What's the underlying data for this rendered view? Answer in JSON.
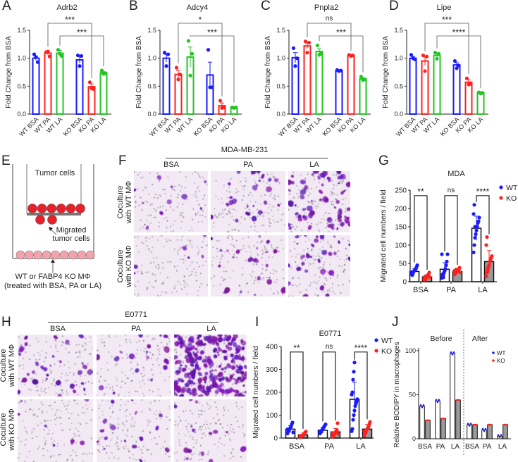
{
  "panel_labels": {
    "A": "A",
    "B": "B",
    "C": "C",
    "D": "D",
    "E": "E",
    "F": "F",
    "G": "G",
    "H": "H",
    "I": "I",
    "J": "J"
  },
  "colors": {
    "wt_blue": "#1a1aff",
    "ko_red": "#ff2020",
    "la_green": "#22c422",
    "ko_bar_gray": "#9a9a9a",
    "mda_purple": "#6a1fa8"
  },
  "diagram_e": {
    "tumor_cells": "Tumor cells",
    "migrated_line1": "Migrated",
    "migrated_line2": "tumor cells",
    "macrophage_line1": "WT or FABP4 KO MΦ",
    "macrophage_line2": "(treated with BSA, PA or LA)"
  },
  "photos_f": {
    "cell_line": "MDA-MB-231",
    "columns": [
      "BSA",
      "PA",
      "LA"
    ],
    "rows": [
      {
        "line1": "Coculture",
        "line2": "with WT MΦ"
      },
      {
        "line1": "Coculture",
        "line2": "with KO MΦ"
      }
    ]
  },
  "photos_h": {
    "cell_line": "E0771",
    "columns": [
      "BSA",
      "PA",
      "LA"
    ],
    "rows": [
      {
        "line1": "Coculture",
        "line2": "with WT MΦ"
      },
      {
        "line1": "Coculture",
        "line2": "with KO MΦ"
      }
    ]
  },
  "chart_data": [
    {
      "id": "A",
      "type": "bar",
      "title": "Adrb2",
      "ylabel": "Fold Change from BSA",
      "ylim": [
        0,
        1.5
      ],
      "yticks": [
        "0.0",
        "0.5",
        "1.0",
        "1.5"
      ],
      "categories": [
        "WT BSA",
        "WT PA",
        "WT LA",
        "KO BSA",
        "KO PA",
        "KO LA"
      ],
      "values": [
        1.0,
        1.09,
        1.09,
        0.97,
        0.49,
        0.74
      ],
      "errors": [
        0.04,
        0.04,
        0.05,
        0.06,
        0.05,
        0.02
      ],
      "points": [
        [
          1.07,
          0.93,
          1.02
        ],
        [
          1.11,
          1.03,
          1.12
        ],
        [
          1.15,
          1.04,
          1.08
        ],
        [
          1.05,
          1.04,
          0.86
        ],
        [
          0.57,
          0.45,
          0.46
        ],
        [
          0.78,
          0.73,
          0.72
        ]
      ],
      "significance": [
        {
          "from": 1,
          "to": 4,
          "label": "***"
        },
        {
          "from": 2,
          "to": 5,
          "label": "***"
        }
      ]
    },
    {
      "id": "B",
      "type": "bar",
      "title": "Adcy4",
      "ylabel": "Fold Change from BSA",
      "ylim": [
        0,
        1.5
      ],
      "yticks": [
        "0.0",
        "0.5",
        "1.0",
        "1.5"
      ],
      "categories": [
        "WT BSA",
        "WT PA",
        "WT LA",
        "KO BSA",
        "KO PA",
        "KO LA"
      ],
      "values": [
        1.0,
        0.71,
        1.02,
        0.7,
        0.15,
        0.12
      ],
      "errors": [
        0.07,
        0.07,
        0.18,
        0.23,
        0.05,
        0.01
      ],
      "points": [
        [
          1.1,
          1.07,
          0.86
        ],
        [
          0.83,
          0.71,
          0.62
        ],
        [
          1.31,
          1.08,
          0.69
        ],
        [
          1.15,
          0.48,
          0.48
        ],
        [
          0.24,
          0.12,
          0.11
        ],
        [
          0.12,
          0.12,
          0.11
        ]
      ],
      "significance": [
        {
          "from": 1,
          "to": 4,
          "label": "*"
        },
        {
          "from": 2,
          "to": 5,
          "label": "***"
        }
      ]
    },
    {
      "id": "C",
      "type": "bar",
      "title": "Pnpla2",
      "ylabel": "Fold Change from BSA",
      "ylim": [
        0,
        1.5
      ],
      "yticks": [
        "0.0",
        "0.5",
        "1.0",
        "1.5"
      ],
      "categories": [
        "WT BSA",
        "WT PA",
        "WT LA",
        "KO BSA",
        "KO PA",
        "KO LA"
      ],
      "values": [
        1.01,
        1.22,
        1.12,
        0.78,
        1.05,
        0.63
      ],
      "errors": [
        0.09,
        0.05,
        0.05,
        0.01,
        0.01,
        0.02
      ],
      "points": [
        [
          1.18,
          1.0,
          0.86
        ],
        [
          1.3,
          1.28,
          1.1
        ],
        [
          1.23,
          1.08,
          1.06
        ],
        [
          0.79,
          0.78,
          0.77
        ],
        [
          1.06,
          1.05,
          1.04
        ],
        [
          0.67,
          0.62,
          0.61
        ]
      ],
      "significance": [
        {
          "from": 1,
          "to": 4,
          "label": "ns"
        },
        {
          "from": 2,
          "to": 5,
          "label": "***"
        }
      ]
    },
    {
      "id": "D",
      "type": "bar",
      "title": "Lipe",
      "ylabel": "Fold Change from BSA",
      "ylim": [
        0,
        1.5
      ],
      "yticks": [
        "0.0",
        "0.5",
        "1.0",
        "1.5"
      ],
      "categories": [
        "WT BSA",
        "WT PA",
        "WT LA",
        "KO BSA",
        "KO PA",
        "KO LA"
      ],
      "values": [
        1.0,
        0.95,
        1.05,
        0.88,
        0.57,
        0.38
      ],
      "errors": [
        0.03,
        0.08,
        0.03,
        0.04,
        0.04,
        0.01
      ],
      "points": [
        [
          1.06,
          0.98,
          1.0
        ],
        [
          1.05,
          1.03,
          0.77
        ],
        [
          1.1,
          1.08,
          0.99
        ],
        [
          0.95,
          0.87,
          0.82
        ],
        [
          0.64,
          0.54,
          0.53
        ],
        [
          0.39,
          0.38,
          0.37
        ]
      ],
      "significance": [
        {
          "from": 1,
          "to": 4,
          "label": "***"
        },
        {
          "from": 2,
          "to": 5,
          "label": "****"
        }
      ]
    },
    {
      "id": "G",
      "type": "bar",
      "title": "MDA",
      "ylabel": "Migrated cell numbers / field",
      "ylim": [
        0,
        250
      ],
      "yticks": [
        "0",
        "50",
        "100",
        "150",
        "200",
        "250"
      ],
      "categories": [
        "BSA",
        "PA",
        "LA"
      ],
      "legend": [
        "WT",
        "KO"
      ],
      "legend_position": "top-right",
      "series": [
        {
          "name": "WT",
          "values": [
            28,
            34,
            146
          ],
          "errors": [
            8,
            18,
            33
          ],
          "points": [
            [
              20,
              22,
              25,
              28,
              30,
              32,
              35,
              40,
              45,
              26,
              18,
              24
            ],
            [
              10,
              15,
              20,
              25,
              30,
              35,
              45,
              55,
              75,
              75,
              20,
              12
            ],
            [
              80,
              100,
              120,
              130,
              140,
              150,
              160,
              165,
              175,
              185,
              210,
              150
            ]
          ]
        },
        {
          "name": "KO",
          "values": [
            13,
            28,
            55
          ],
          "errors": [
            6,
            5,
            30
          ],
          "points": [
            [
              5,
              8,
              10,
              12,
              15,
              18,
              20,
              25,
              12,
              9,
              14,
              6
            ],
            [
              20,
              22,
              25,
              28,
              30,
              32,
              35,
              38,
              26,
              30,
              24,
              33
            ],
            [
              15,
              25,
              35,
              40,
              45,
              55,
              60,
              65,
              70,
              100,
              122,
              30
            ]
          ]
        }
      ],
      "significance": [
        "**",
        "ns",
        "****"
      ]
    },
    {
      "id": "I",
      "type": "bar",
      "title": "E0771",
      "ylabel": "Migrated cell numbers / field",
      "ylim": [
        0,
        400
      ],
      "yticks": [
        "0",
        "100",
        "200",
        "300",
        "400"
      ],
      "categories": [
        "BSA",
        "PA",
        "LA"
      ],
      "legend": [
        "WT",
        "KO"
      ],
      "legend_position": "top-right",
      "series": [
        {
          "name": "WT",
          "values": [
            39,
            34,
            169
          ],
          "errors": [
            15,
            12,
            75
          ],
          "points": [
            [
              20,
              30,
              35,
              40,
              45,
              50,
              60,
              68,
              25,
              38
            ],
            [
              20,
              25,
              30,
              35,
              40,
              45,
              50,
              55,
              60,
              30
            ],
            [
              30,
              40,
              80,
              100,
              120,
              140,
              150,
              160,
              170,
              190,
              200,
              255,
              290,
              330
            ]
          ]
        },
        {
          "name": "KO",
          "values": [
            14,
            27,
            39
          ],
          "errors": [
            8,
            15,
            20
          ],
          "points": [
            [
              3,
              5,
              8,
              10,
              12,
              15,
              20,
              25,
              28,
              10
            ],
            [
              5,
              10,
              15,
              20,
              25,
              30,
              35,
              65,
              18,
              22
            ],
            [
              10,
              20,
              30,
              35,
              40,
              45,
              50,
              60,
              70,
              30
            ]
          ]
        }
      ],
      "significance": [
        "**",
        "ns",
        "****"
      ]
    },
    {
      "id": "J",
      "type": "bar",
      "ylabel": "Relative BODIPY in macrophages",
      "ylim": [
        0,
        100
      ],
      "yticks": [
        "0",
        "50",
        "100"
      ],
      "groups": [
        "Before",
        "After"
      ],
      "categories": [
        "BSA",
        "PA",
        "LA",
        "BSA",
        "PA",
        "LA"
      ],
      "legend": [
        "WT",
        "KO"
      ],
      "legend_position": "top-right",
      "series": [
        {
          "name": "WT",
          "values": [
            37,
            43,
            97,
            16,
            10,
            3
          ]
        },
        {
          "name": "KO",
          "values": [
            21,
            23,
            44,
            16,
            16,
            16
          ]
        }
      ]
    }
  ]
}
